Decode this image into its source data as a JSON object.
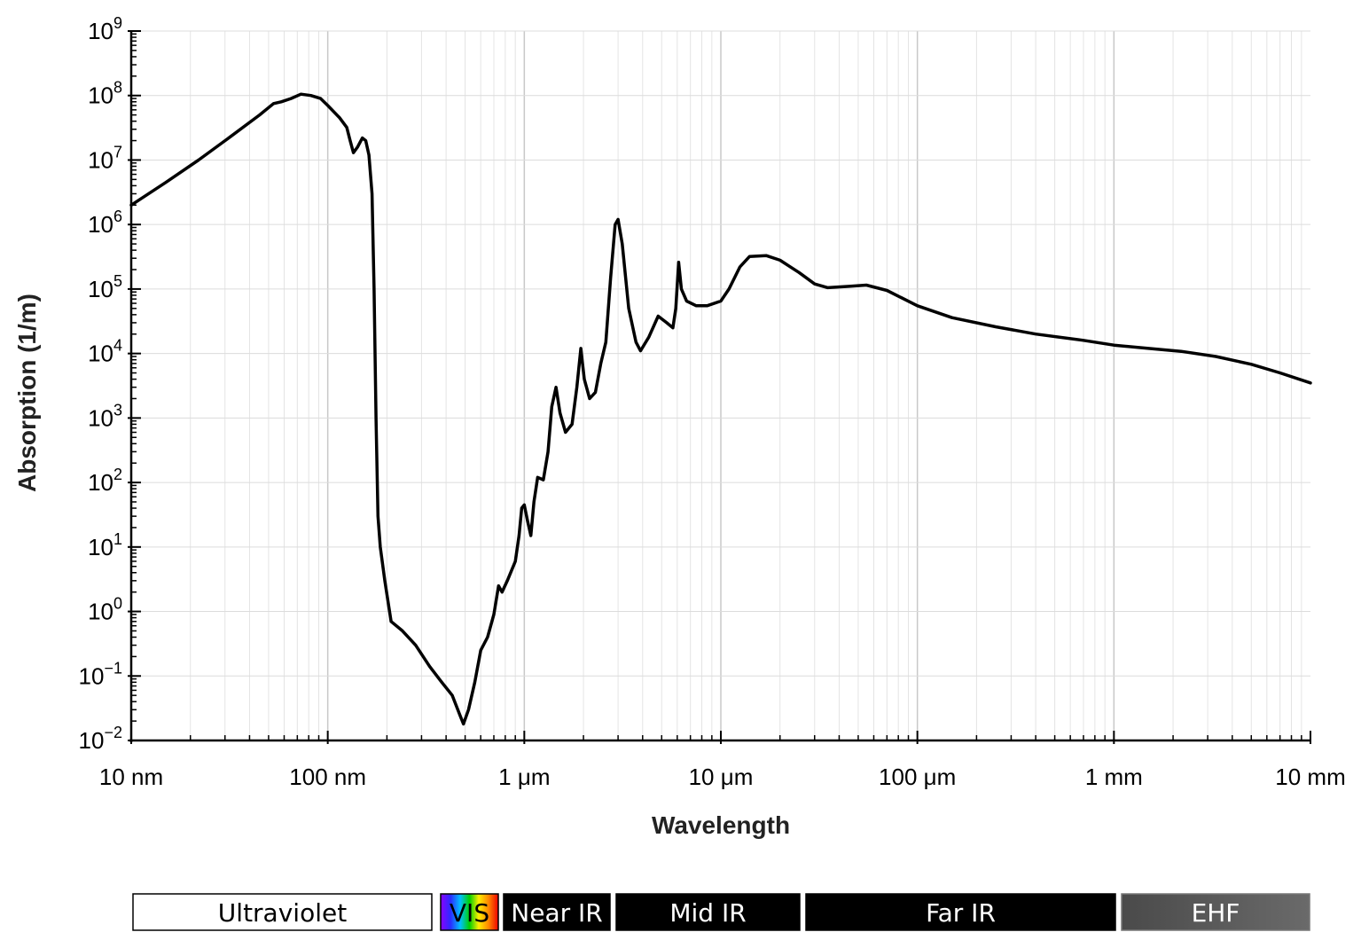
{
  "chart_data": {
    "type": "line",
    "title": "",
    "xlabel": "Wavelength",
    "ylabel": "Absorption (1/m)",
    "x_scale": "log",
    "y_scale": "log",
    "xlim": [
      1e-08,
      0.01
    ],
    "ylim": [
      0.01,
      1000000000
    ],
    "grid": true,
    "x_ticks": [
      {
        "value": 1e-08,
        "label": "10 nm"
      },
      {
        "value": 1e-07,
        "label": "100 nm"
      },
      {
        "value": 1e-06,
        "label": "1 μm"
      },
      {
        "value": 1e-05,
        "label": "10 μm"
      },
      {
        "value": 0.0001,
        "label": "100 μm"
      },
      {
        "value": 0.001,
        "label": "1 mm"
      },
      {
        "value": 0.01,
        "label": "10 mm"
      }
    ],
    "y_ticks": [
      {
        "value": 0.01,
        "base": "10",
        "exp": "−2"
      },
      {
        "value": 0.1,
        "base": "10",
        "exp": "−1"
      },
      {
        "value": 1.0,
        "base": "10",
        "exp": "0"
      },
      {
        "value": 10.0,
        "base": "10",
        "exp": "1"
      },
      {
        "value": 100.0,
        "base": "10",
        "exp": "2"
      },
      {
        "value": 1000.0,
        "base": "10",
        "exp": "3"
      },
      {
        "value": 10000.0,
        "base": "10",
        "exp": "4"
      },
      {
        "value": 100000.0,
        "base": "10",
        "exp": "5"
      },
      {
        "value": 1000000.0,
        "base": "10",
        "exp": "6"
      },
      {
        "value": 10000000.0,
        "base": "10",
        "exp": "7"
      },
      {
        "value": 100000000.0,
        "base": "10",
        "exp": "8"
      },
      {
        "value": 1000000000.0,
        "base": "10",
        "exp": "9"
      }
    ],
    "series": [
      {
        "color": "#000000",
        "points": [
          [
            1e-08,
            2000000.0
          ],
          [
            1.5e-08,
            4500000.0
          ],
          [
            2.2e-08,
            10000000.0
          ],
          [
            3.2e-08,
            23000000.0
          ],
          [
            4.5e-08,
            50000000.0
          ],
          [
            5.3e-08,
            75000000.0
          ],
          [
            5.8e-08,
            80000000.0
          ],
          [
            6.5e-08,
            90000000.0
          ],
          [
            7.3e-08,
            105000000.0
          ],
          [
            8.2e-08,
            100000000.0
          ],
          [
            9.2e-08,
            90000000.0
          ],
          [
            1e-07,
            70000000.0
          ],
          [
            1.15e-07,
            45000000.0
          ],
          [
            1.25e-07,
            32000000.0
          ],
          [
            1.3e-07,
            20000000.0
          ],
          [
            1.35e-07,
            13000000.0
          ],
          [
            1.42e-07,
            16000000.0
          ],
          [
            1.5e-07,
            22000000.0
          ],
          [
            1.56e-07,
            20000000.0
          ],
          [
            1.62e-07,
            12000000.0
          ],
          [
            1.68e-07,
            3000000.0
          ],
          [
            1.72e-07,
            100000.0
          ],
          [
            1.76e-07,
            1000.0
          ],
          [
            1.8e-07,
            30
          ],
          [
            1.85e-07,
            10
          ],
          [
            1.95e-07,
            3
          ],
          [
            2.1e-07,
            0.7
          ],
          [
            2.4e-07,
            0.5
          ],
          [
            2.8e-07,
            0.3
          ],
          [
            3.3e-07,
            0.14
          ],
          [
            3.8e-07,
            0.08
          ],
          [
            4.3e-07,
            0.05
          ],
          [
            4.7e-07,
            0.025
          ],
          [
            4.9e-07,
            0.018
          ],
          [
            5.2e-07,
            0.03
          ],
          [
            5.6e-07,
            0.08
          ],
          [
            6e-07,
            0.25
          ],
          [
            6.5e-07,
            0.4
          ],
          [
            7e-07,
            0.9
          ],
          [
            7.4e-07,
            2.5
          ],
          [
            7.7e-07,
            2.0
          ],
          [
            8.2e-07,
            3.0
          ],
          [
            9e-07,
            6.0
          ],
          [
            9.4e-07,
            15
          ],
          [
            9.7e-07,
            40
          ],
          [
            1e-06,
            45
          ],
          [
            1.04e-06,
            25
          ],
          [
            1.08e-06,
            15
          ],
          [
            1.12e-06,
            50
          ],
          [
            1.17e-06,
            120
          ],
          [
            1.25e-06,
            110
          ],
          [
            1.32e-06,
            300
          ],
          [
            1.38e-06,
            1500.0
          ],
          [
            1.45e-06,
            3000.0
          ],
          [
            1.52e-06,
            1200.0
          ],
          [
            1.62e-06,
            600
          ],
          [
            1.75e-06,
            800
          ],
          [
            1.85e-06,
            3000.0
          ],
          [
            1.94e-06,
            12000.0
          ],
          [
            2.02e-06,
            4000.0
          ],
          [
            2.15e-06,
            2000.0
          ],
          [
            2.3e-06,
            2500.0
          ],
          [
            2.45e-06,
            7000.0
          ],
          [
            2.6e-06,
            15000.0
          ],
          [
            2.75e-06,
            150000.0
          ],
          [
            2.9e-06,
            1000000.0
          ],
          [
            3e-06,
            1200000.0
          ],
          [
            3.15e-06,
            500000.0
          ],
          [
            3.4e-06,
            50000.0
          ],
          [
            3.7e-06,
            15000.0
          ],
          [
            3.9e-06,
            11000.0
          ],
          [
            4.3e-06,
            18000.0
          ],
          [
            4.8e-06,
            38000.0
          ],
          [
            5.3e-06,
            30000.0
          ],
          [
            5.7e-06,
            25000.0
          ],
          [
            5.9e-06,
            50000.0
          ],
          [
            6.1e-06,
            260000.0
          ],
          [
            6.3e-06,
            100000.0
          ],
          [
            6.7e-06,
            65000.0
          ],
          [
            7.5e-06,
            55000.0
          ],
          [
            8.5e-06,
            55000.0
          ],
          [
            1e-05,
            65000.0
          ],
          [
            1.1e-05,
            100000.0
          ],
          [
            1.25e-05,
            220000.0
          ],
          [
            1.4e-05,
            320000.0
          ],
          [
            1.7e-05,
            330000.0
          ],
          [
            2e-05,
            280000.0
          ],
          [
            2.5e-05,
            180000.0
          ],
          [
            3e-05,
            120000.0
          ],
          [
            3.5e-05,
            105000.0
          ],
          [
            4.5e-05,
            110000.0
          ],
          [
            5.5e-05,
            115000.0
          ],
          [
            7e-05,
            95000.0
          ],
          [
            0.0001,
            55000.0
          ],
          [
            0.00015,
            36000.0
          ],
          [
            0.00025,
            26000.0
          ],
          [
            0.0004,
            20000.0
          ],
          [
            0.0007,
            16000.0
          ],
          [
            0.001,
            13500.0
          ],
          [
            0.0015,
            12000.0
          ],
          [
            0.0022,
            10800.0
          ],
          [
            0.0033,
            9000.0
          ],
          [
            0.005,
            6800.0
          ],
          [
            0.007,
            5000.0
          ],
          [
            0.01,
            3500.0
          ]
        ]
      }
    ]
  },
  "bands": [
    {
      "label": "Ultraviolet",
      "fill": "#ffffff",
      "text_color": "#000000"
    },
    {
      "label": "VIS",
      "fill": "rainbow",
      "text_color": "#000000"
    },
    {
      "label": "Near IR",
      "fill": "#000000",
      "text_color": "#ffffff"
    },
    {
      "label": "Mid IR",
      "fill": "#000000",
      "text_color": "#ffffff"
    },
    {
      "label": "Far IR",
      "fill": "#000000",
      "text_color": "#ffffff"
    },
    {
      "label": "EHF",
      "fill": "#555555",
      "text_color": "#ffffff"
    }
  ]
}
